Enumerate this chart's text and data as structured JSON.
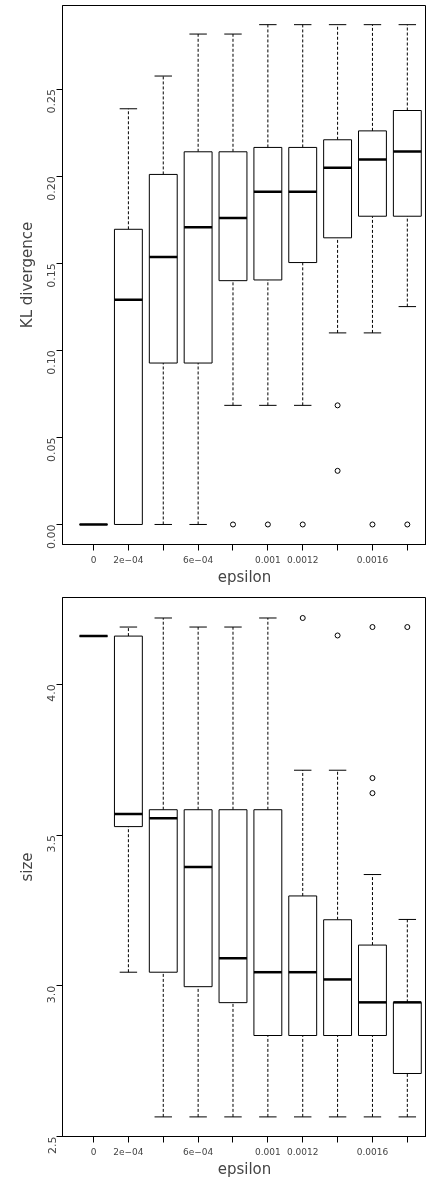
{
  "chart_data": [
    {
      "type": "box",
      "xlabel": "epsilon",
      "ylabel": "KL divergence",
      "grid": false,
      "categories": [
        "0",
        "2e−04",
        null,
        "6e−04",
        null,
        "0.001",
        "0.0012",
        null,
        "0.0016",
        null
      ],
      "ylim": [
        -0.0115,
        0.298
      ],
      "yticks": [
        {
          "value": 0,
          "label": "0.00"
        },
        {
          "value": 0.05,
          "label": "0.05"
        },
        {
          "value": 0.1,
          "label": "0.10"
        },
        {
          "value": 0.15,
          "label": "0.15"
        },
        {
          "value": 0.2,
          "label": "0.20"
        },
        {
          "value": 0.25,
          "label": "0.25"
        }
      ],
      "boxes": [
        {
          "low": 0,
          "q1": 0,
          "median": 0,
          "q3": 0,
          "high": 0
        },
        {
          "low": 0,
          "q1": 0,
          "median": 0.129,
          "q3": 0.1695,
          "high": 0.2387
        },
        {
          "low": 0,
          "q1": 0.0927,
          "median": 0.1536,
          "q3": 0.201,
          "high": 0.2575
        },
        {
          "low": 0,
          "q1": 0.0927,
          "median": 0.1707,
          "q3": 0.214,
          "high": 0.2816
        },
        {
          "low": 0.0684,
          "q1": 0.14,
          "median": 0.176,
          "q3": 0.214,
          "high": 0.2816,
          "outliers": [
            0
          ]
        },
        {
          "low": 0.0684,
          "q1": 0.1404,
          "median": 0.191,
          "q3": 0.2165,
          "high": 0.287,
          "outliers": [
            0
          ]
        },
        {
          "low": 0.0684,
          "q1": 0.1504,
          "median": 0.191,
          "q3": 0.2165,
          "high": 0.287,
          "outliers": [
            0
          ]
        },
        {
          "low": 0.11,
          "q1": 0.1646,
          "median": 0.2048,
          "q3": 0.2209,
          "high": 0.287,
          "outliers": [
            0.0684,
            0.0308
          ]
        },
        {
          "low": 0.11,
          "q1": 0.177,
          "median": 0.2096,
          "q3": 0.226,
          "high": 0.287,
          "outliers": [
            0
          ]
        },
        {
          "low": 0.1251,
          "q1": 0.177,
          "median": 0.2142,
          "q3": 0.2377,
          "high": 0.287,
          "outliers": [
            0
          ]
        }
      ]
    },
    {
      "type": "box",
      "xlabel": "epsilon",
      "ylabel": "size",
      "grid": false,
      "categories": [
        "0",
        "2e−04",
        null,
        "6e−04",
        null,
        "0.001",
        "0.0012",
        null,
        "0.0016",
        null
      ],
      "ylim": [
        2.5,
        4.288
      ],
      "yticks": [
        {
          "value": 2.5,
          "label": "2.5"
        },
        {
          "value": 3,
          "label": "3.0"
        },
        {
          "value": 3.5,
          "label": "3.5"
        },
        {
          "value": 4,
          "label": "4.0"
        }
      ],
      "boxes": [
        {
          "low": 4.16,
          "q1": 4.16,
          "median": 4.16,
          "q3": 4.16,
          "high": 4.16
        },
        {
          "low": 3.045,
          "q1": 3.528,
          "median": 3.57,
          "q3": 4.16,
          "high": 4.19
        },
        {
          "low": 2.565,
          "q1": 3.045,
          "median": 3.556,
          "q3": 3.584,
          "high": 4.22
        },
        {
          "low": 2.565,
          "q1": 2.997,
          "median": 3.394,
          "q3": 3.584,
          "high": 4.19
        },
        {
          "low": 2.565,
          "q1": 2.944,
          "median": 3.091,
          "q3": 3.584,
          "high": 4.19
        },
        {
          "low": 2.565,
          "q1": 2.835,
          "median": 3.045,
          "q3": 3.584,
          "high": 4.22
        },
        {
          "low": 2.565,
          "q1": 2.835,
          "median": 3.045,
          "q3": 3.298,
          "high": 3.715,
          "outliers": [
            4.22
          ]
        },
        {
          "low": 2.565,
          "q1": 2.835,
          "median": 3.021,
          "q3": 3.219,
          "high": 3.715,
          "outliers": [
            4.162
          ]
        },
        {
          "low": 2.565,
          "q1": 2.835,
          "median": 2.945,
          "q3": 3.135,
          "high": 3.369,
          "outliers": [
            4.19,
            3.689,
            3.639
          ]
        },
        {
          "low": 2.565,
          "q1": 2.709,
          "median": 2.945,
          "q3": 2.945,
          "high": 3.22,
          "outliers": [
            4.19
          ]
        }
      ]
    }
  ]
}
